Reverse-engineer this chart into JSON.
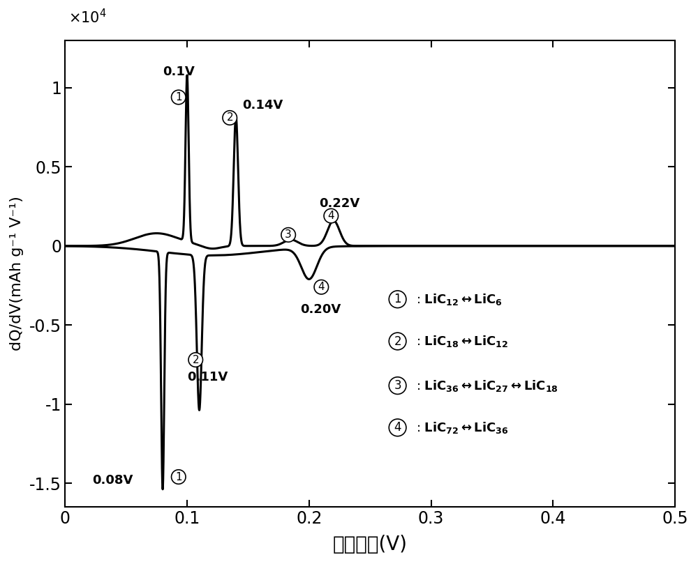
{
  "xlabel": "对锂电位(V)",
  "ylabel": "dQ/dV(mAh g⁻¹ V⁻¹)",
  "xlim": [
    0,
    0.5
  ],
  "ylim": [
    -16500.0,
    13000.0
  ],
  "xticks": [
    0,
    0.1,
    0.2,
    0.3,
    0.4,
    0.5
  ],
  "yticks": [
    -15000.0,
    -10000.0,
    -5000.0,
    0,
    5000.0,
    10000.0
  ],
  "yticklabels": [
    "-1.5",
    "-1",
    "-0.5",
    "0",
    "0.5",
    "1"
  ],
  "background_color": "#ffffff",
  "line_color": "#000000",
  "line_width": 2.2
}
